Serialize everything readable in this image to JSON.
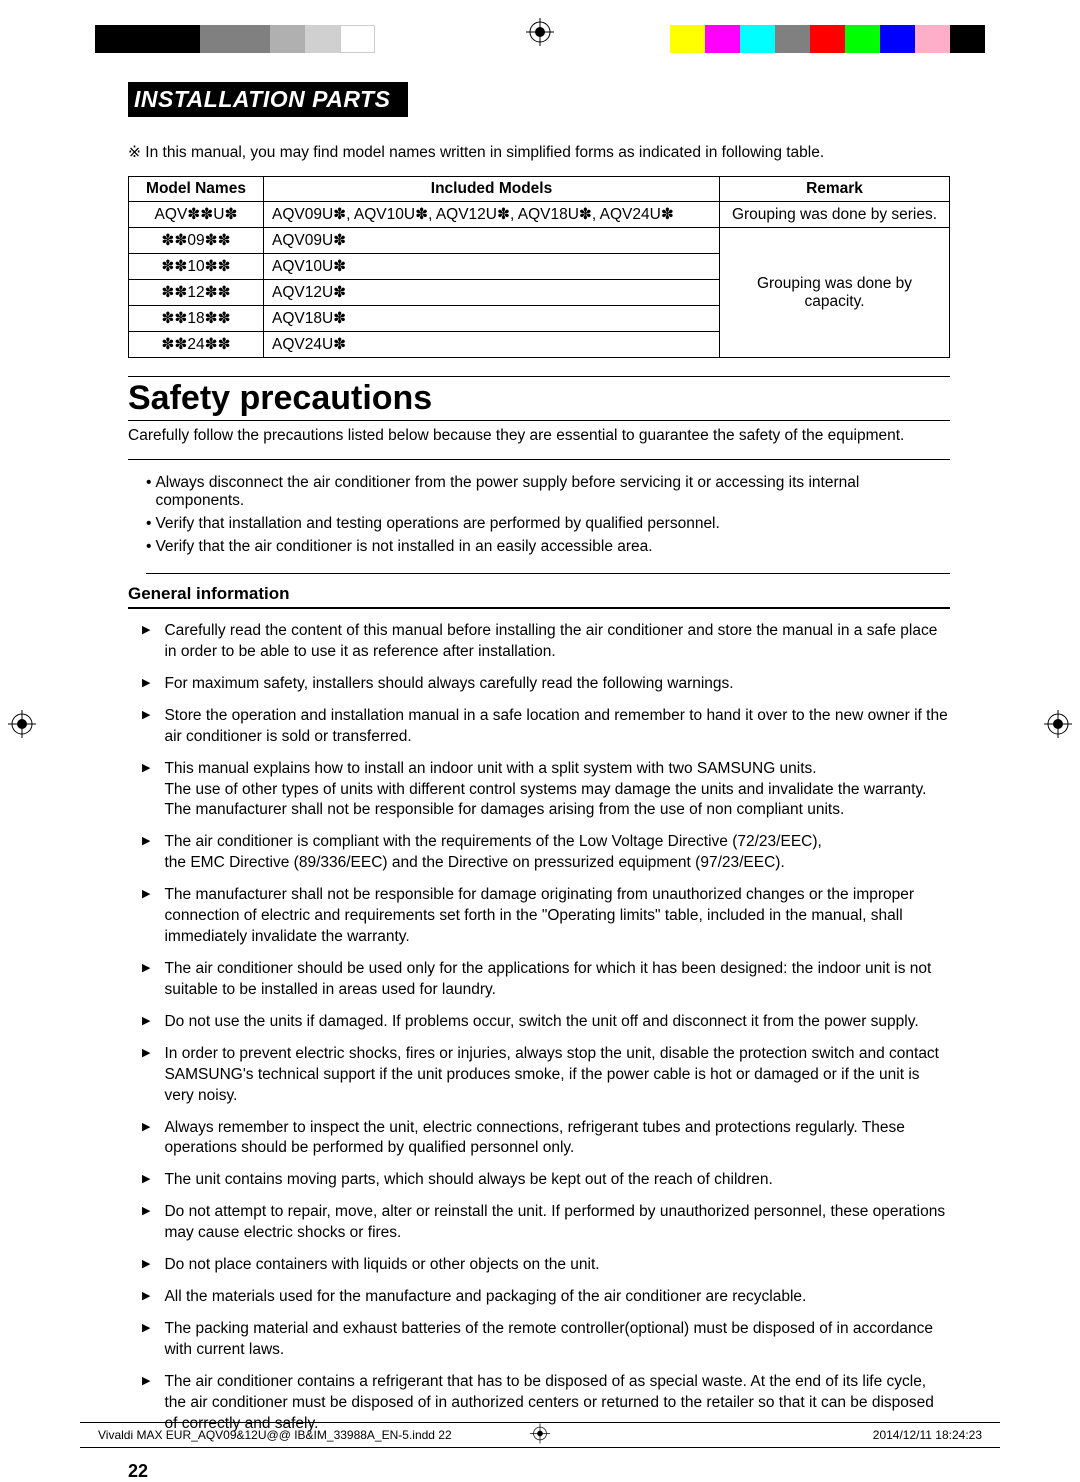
{
  "print_bars": {
    "left_colors": [
      "#000000",
      "#000000",
      "#000000",
      "#808080",
      "#808080",
      "#b0b0b0",
      "#d0d0d0",
      "#ffffff"
    ],
    "right_colors": [
      "#ffff00",
      "#ff00ff",
      "#00ffff",
      "#808080",
      "#ff0000",
      "#00ff00",
      "#0000ff",
      "#ffaec9",
      "#000000"
    ]
  },
  "section_header": "INSTALLATION PARTS",
  "note": "※ In this manual, you may find model names written in simplified forms as indicated in following table.",
  "table": {
    "headers": [
      "Model Names",
      "Included Models",
      "Remark"
    ],
    "rows": [
      {
        "name": "AQV✽✽U✽",
        "included": "AQV09U✽, AQV10U✽, AQV12U✽, AQV18U✽, AQV24U✽",
        "remark": "Grouping was done by series."
      },
      {
        "name": "✽✽09✽✽",
        "included": "AQV09U✽"
      },
      {
        "name": "✽✽10✽✽",
        "included": "AQV10U✽"
      },
      {
        "name": "✽✽12✽✽",
        "included": "AQV12U✽"
      },
      {
        "name": "✽✽18✽✽",
        "included": "AQV18U✽"
      },
      {
        "name": "✽✽24✽✽",
        "included": "AQV24U✽"
      }
    ],
    "grouped_remark": "Grouping was done by capacity."
  },
  "main_heading": "Safety precautions",
  "intro_text": "Carefully follow the precautions listed below because they are essential to guarantee the safety of the equipment.",
  "warnings": [
    "Always disconnect the air conditioner from the power supply before servicing it or accessing its internal components.",
    "Verify that installation and testing operations are performed by qualified personnel.",
    "Verify that the air conditioner is not installed in an easily accessible area."
  ],
  "general_info_title": "General information",
  "general_info_items": [
    "Carefully read the content of this manual before installing the air conditioner and store the manual in a safe place in order to be able to use it as reference after installation.",
    "For maximum safety, installers should always carefully read the following warnings.",
    "Store the operation and installation manual in a safe location and remember to hand it over to the new owner if the air conditioner is sold or transferred.",
    "This manual explains how to install an indoor unit with a split system with two SAMSUNG units.\nThe use of other types of units with different control systems may damage the units and invalidate the warranty.\nThe manufacturer shall not be responsible for damages arising from the use of non compliant units.",
    "The air conditioner is compliant with the requirements of the Low Voltage Directive (72/23/EEC),\nthe EMC Directive (89/336/EEC) and the Directive on pressurized equipment (97/23/EEC).",
    "The manufacturer shall not be responsible for damage originating from unauthorized changes or the improper connection of electric and requirements set forth in the \"Operating limits\" table, included in the manual, shall immediately invalidate the warranty.",
    "The air conditioner should be used only for the applications for which it has been designed: the indoor unit is not suitable to be installed in areas used for laundry.",
    "Do not use the units if damaged. If problems occur, switch the unit off and disconnect it from the power supply.",
    "In order to prevent electric shocks, fires or injuries, always stop the unit, disable the protection switch and contact SAMSUNG's technical support if the unit produces smoke, if the power cable is hot or damaged or if the unit is very noisy.",
    "Always remember to inspect the unit, electric connections, refrigerant tubes and protections regularly. These operations should be performed by qualified personnel only.",
    "The unit contains moving parts, which should always be kept out of the reach of children.",
    "Do not attempt to repair, move, alter or reinstall the unit. If performed by unauthorized personnel, these operations may cause electric shocks or fires.",
    "Do not place containers with liquids or other objects on the unit.",
    "All the materials used for the manufacture and packaging of the air conditioner are recyclable.",
    "The packing material and exhaust batteries of the remote controller(optional) must be disposed of in accordance with current laws.",
    "The air conditioner contains a refrigerant that has to be disposed of as special waste. At the end of its life cycle, the air conditioner must be disposed of in authorized centers or returned to the retailer so that it can be disposed of correctly and safely."
  ],
  "page_number": "22",
  "footer": {
    "left": "Vivaldi MAX EUR_AQV09&12U@@ IB&IM_33988A_EN-5.indd   22",
    "right": "2014/12/11   18:24:23"
  }
}
